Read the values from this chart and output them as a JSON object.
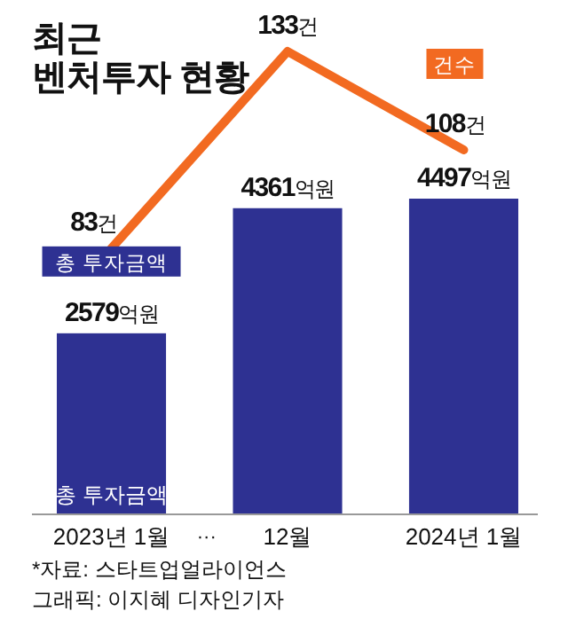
{
  "chart_data": {
    "type": "bar",
    "title": "최근\n벤처투자 현황",
    "categories": [
      "2023년 1월",
      "12월",
      "2024년 1월"
    ],
    "series": [
      {
        "name": "총 투자금액",
        "color": "#2e3192",
        "values": [
          2579,
          4361,
          4497
        ],
        "value_labels": [
          "2579억원",
          "4361억원",
          "4497억원"
        ]
      },
      {
        "name": "건수",
        "type": "line",
        "axis": "y2",
        "color": "#f26a21",
        "values": [
          83,
          133,
          108
        ],
        "value_labels": [
          "83건",
          "133건",
          "108건"
        ]
      }
    ],
    "tick_labels": "x",
    "legend": "top right",
    "annotations": [
      "총 투자금액",
      "···",
      "*자료: 스타트업얼라이언스",
      "그래픽: 이지혜 디자인기자"
    ]
  }
}
